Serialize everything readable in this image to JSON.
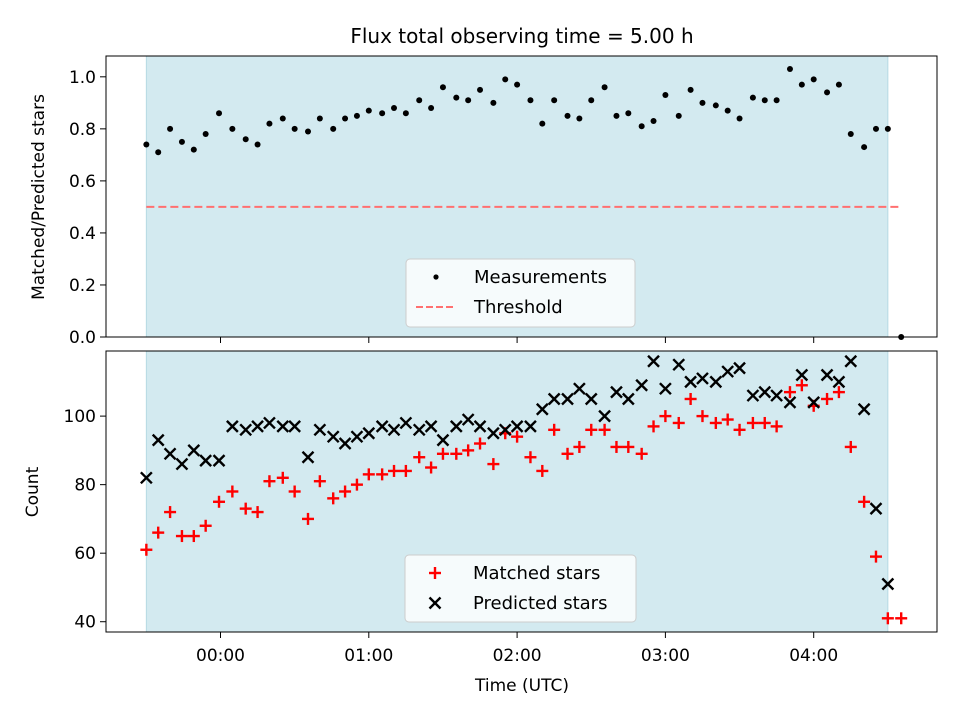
{
  "chart_data": [
    {
      "type": "scatter",
      "title": "Flux total observing time = 5.00 h",
      "xlabel": "",
      "ylabel": "Matched/Predicted stars",
      "ylim": [
        0,
        1.08
      ],
      "yticks": [
        "0.0",
        "0.2",
        "0.4",
        "0.6",
        "0.8",
        "1.0"
      ],
      "xticks": [
        "00:00",
        "01:00",
        "02:00",
        "03:00",
        "04:00"
      ],
      "xtick_labels_visible": false,
      "grid": false,
      "legend_position": "lower-center",
      "shaded_span_color": "#d3eaf0",
      "series": [
        {
          "name": "Measurements",
          "marker": "dot",
          "color": "#000000",
          "points": [
            [
              -0.5,
              0.74
            ],
            [
              -0.42,
              0.71
            ],
            [
              -0.34,
              0.8
            ],
            [
              -0.26,
              0.75
            ],
            [
              -0.18,
              0.72
            ],
            [
              -0.1,
              0.78
            ],
            [
              -0.01,
              0.86
            ],
            [
              0.08,
              0.8
            ],
            [
              0.17,
              0.76
            ],
            [
              0.25,
              0.74
            ],
            [
              0.33,
              0.82
            ],
            [
              0.42,
              0.84
            ],
            [
              0.5,
              0.8
            ],
            [
              0.59,
              0.79
            ],
            [
              0.67,
              0.84
            ],
            [
              0.76,
              0.8
            ],
            [
              0.84,
              0.84
            ],
            [
              0.92,
              0.85
            ],
            [
              1.0,
              0.87
            ],
            [
              1.09,
              0.86
            ],
            [
              1.17,
              0.88
            ],
            [
              1.25,
              0.86
            ],
            [
              1.34,
              0.91
            ],
            [
              1.42,
              0.88
            ],
            [
              1.5,
              0.96
            ],
            [
              1.59,
              0.92
            ],
            [
              1.67,
              0.91
            ],
            [
              1.75,
              0.95
            ],
            [
              1.84,
              0.9
            ],
            [
              1.92,
              0.99
            ],
            [
              2.0,
              0.97
            ],
            [
              2.09,
              0.91
            ],
            [
              2.17,
              0.82
            ],
            [
              2.25,
              0.91
            ],
            [
              2.34,
              0.85
            ],
            [
              2.42,
              0.84
            ],
            [
              2.5,
              0.91
            ],
            [
              2.59,
              0.96
            ],
            [
              2.67,
              0.85
            ],
            [
              2.75,
              0.86
            ],
            [
              2.84,
              0.81
            ],
            [
              2.92,
              0.83
            ],
            [
              3.0,
              0.93
            ],
            [
              3.09,
              0.85
            ],
            [
              3.17,
              0.95
            ],
            [
              3.25,
              0.9
            ],
            [
              3.34,
              0.89
            ],
            [
              3.42,
              0.87
            ],
            [
              3.5,
              0.84
            ],
            [
              3.59,
              0.92
            ],
            [
              3.67,
              0.91
            ],
            [
              3.75,
              0.91
            ],
            [
              3.84,
              1.03
            ],
            [
              3.92,
              0.97
            ],
            [
              4.0,
              0.99
            ],
            [
              4.09,
              0.94
            ],
            [
              4.17,
              0.97
            ],
            [
              4.25,
              0.78
            ],
            [
              4.34,
              0.73
            ],
            [
              4.42,
              0.8
            ],
            [
              4.5,
              0.8
            ],
            [
              4.59,
              0.0
            ]
          ]
        },
        {
          "name": "Threshold",
          "marker": "dashed-line",
          "color": "#ff7070",
          "points": [
            [
              -0.5,
              0.5
            ],
            [
              4.59,
              0.5
            ]
          ]
        }
      ]
    },
    {
      "type": "scatter",
      "title": "",
      "xlabel": "Time (UTC)",
      "ylabel": "Count",
      "ylim": [
        37,
        119
      ],
      "yticks": [
        "40",
        "60",
        "80",
        "100"
      ],
      "xticks": [
        "00:00",
        "01:00",
        "02:00",
        "03:00",
        "04:00"
      ],
      "grid": false,
      "legend_position": "lower-center",
      "shaded_span_color": "#d3eaf0",
      "series": [
        {
          "name": "Matched stars",
          "marker": "plus",
          "color": "#ff0000",
          "points": [
            [
              -0.5,
              61
            ],
            [
              -0.42,
              66
            ],
            [
              -0.34,
              72
            ],
            [
              -0.26,
              65
            ],
            [
              -0.18,
              65
            ],
            [
              -0.1,
              68
            ],
            [
              -0.01,
              75
            ],
            [
              0.08,
              78
            ],
            [
              0.17,
              73
            ],
            [
              0.25,
              72
            ],
            [
              0.33,
              81
            ],
            [
              0.42,
              82
            ],
            [
              0.5,
              78
            ],
            [
              0.59,
              70
            ],
            [
              0.67,
              81
            ],
            [
              0.76,
              76
            ],
            [
              0.84,
              78
            ],
            [
              0.92,
              80
            ],
            [
              1.0,
              83
            ],
            [
              1.09,
              83
            ],
            [
              1.17,
              84
            ],
            [
              1.25,
              84
            ],
            [
              1.34,
              88
            ],
            [
              1.42,
              85
            ],
            [
              1.5,
              89
            ],
            [
              1.59,
              89
            ],
            [
              1.67,
              90
            ],
            [
              1.75,
              92
            ],
            [
              1.84,
              86
            ],
            [
              1.92,
              95
            ],
            [
              2.0,
              94
            ],
            [
              2.09,
              88
            ],
            [
              2.17,
              84
            ],
            [
              2.25,
              96
            ],
            [
              2.34,
              89
            ],
            [
              2.42,
              91
            ],
            [
              2.5,
              96
            ],
            [
              2.59,
              96
            ],
            [
              2.67,
              91
            ],
            [
              2.75,
              91
            ],
            [
              2.84,
              89
            ],
            [
              2.92,
              97
            ],
            [
              3.0,
              100
            ],
            [
              3.09,
              98
            ],
            [
              3.17,
              105
            ],
            [
              3.25,
              100
            ],
            [
              3.34,
              98
            ],
            [
              3.42,
              99
            ],
            [
              3.5,
              96
            ],
            [
              3.59,
              98
            ],
            [
              3.67,
              98
            ],
            [
              3.75,
              97
            ],
            [
              3.84,
              107
            ],
            [
              3.92,
              109
            ],
            [
              4.0,
              103
            ],
            [
              4.09,
              105
            ],
            [
              4.17,
              107
            ],
            [
              4.25,
              91
            ],
            [
              4.34,
              75
            ],
            [
              4.42,
              59
            ],
            [
              4.5,
              41
            ],
            [
              4.59,
              41
            ]
          ]
        },
        {
          "name": "Predicted stars",
          "marker": "x",
          "color": "#000000",
          "points": [
            [
              -0.5,
              82
            ],
            [
              -0.42,
              93
            ],
            [
              -0.34,
              89
            ],
            [
              -0.26,
              86
            ],
            [
              -0.18,
              90
            ],
            [
              -0.1,
              87
            ],
            [
              -0.01,
              87
            ],
            [
              0.08,
              97
            ],
            [
              0.17,
              96
            ],
            [
              0.25,
              97
            ],
            [
              0.33,
              98
            ],
            [
              0.42,
              97
            ],
            [
              0.5,
              97
            ],
            [
              0.59,
              88
            ],
            [
              0.67,
              96
            ],
            [
              0.76,
              94
            ],
            [
              0.84,
              92
            ],
            [
              0.92,
              94
            ],
            [
              1.0,
              95
            ],
            [
              1.09,
              97
            ],
            [
              1.17,
              96
            ],
            [
              1.25,
              98
            ],
            [
              1.34,
              96
            ],
            [
              1.42,
              97
            ],
            [
              1.5,
              93
            ],
            [
              1.59,
              97
            ],
            [
              1.67,
              99
            ],
            [
              1.75,
              97
            ],
            [
              1.84,
              95
            ],
            [
              1.92,
              96
            ],
            [
              2.0,
              97
            ],
            [
              2.09,
              97
            ],
            [
              2.17,
              102
            ],
            [
              2.25,
              105
            ],
            [
              2.34,
              105
            ],
            [
              2.42,
              108
            ],
            [
              2.5,
              105
            ],
            [
              2.59,
              100
            ],
            [
              2.67,
              107
            ],
            [
              2.75,
              105
            ],
            [
              2.84,
              109
            ],
            [
              2.92,
              116
            ],
            [
              3.0,
              108
            ],
            [
              3.09,
              115
            ],
            [
              3.17,
              110
            ],
            [
              3.25,
              111
            ],
            [
              3.34,
              110
            ],
            [
              3.42,
              113
            ],
            [
              3.5,
              114
            ],
            [
              3.59,
              106
            ],
            [
              3.67,
              107
            ],
            [
              3.75,
              106
            ],
            [
              3.84,
              104
            ],
            [
              3.92,
              112
            ],
            [
              4.0,
              104
            ],
            [
              4.09,
              112
            ],
            [
              4.17,
              110
            ],
            [
              4.25,
              116
            ],
            [
              4.34,
              102
            ],
            [
              4.42,
              73
            ],
            [
              4.5,
              51
            ]
          ]
        }
      ]
    }
  ]
}
